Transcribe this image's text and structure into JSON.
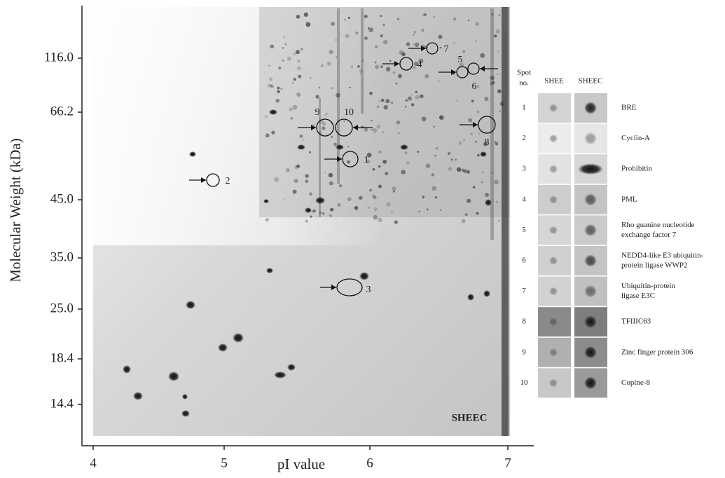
{
  "figure": {
    "y_axis_label": "Molecular Weight (kDa)",
    "x_axis_label": "pI value",
    "y_ticks": [
      "116.0",
      "66.2",
      "45.0",
      "35.0",
      "25.0",
      "18.4",
      "14.4"
    ],
    "x_ticks": [
      "4",
      "5",
      "6",
      "7"
    ],
    "gel_label": "SHEEC",
    "spots": [
      "1",
      "2",
      "3",
      "4",
      "5",
      "6",
      "7",
      "8",
      "9",
      "10"
    ]
  },
  "table": {
    "headers": {
      "spot": [
        "Spot",
        "no."
      ],
      "control": "SHEE",
      "sample": "SHEEC"
    },
    "rows": [
      {
        "spot": "1",
        "protein": [
          "BRE"
        ]
      },
      {
        "spot": "2",
        "protein": [
          "Cyclin-A"
        ]
      },
      {
        "spot": "3",
        "protein": [
          "Prohibitin"
        ]
      },
      {
        "spot": "4",
        "protein": [
          "PML"
        ]
      },
      {
        "spot": "5",
        "protein": [
          "Rho guanine nucleotide",
          "exchange factor 7"
        ]
      },
      {
        "spot": "6",
        "protein": [
          "NEDD4-like E3 ubiquitin-",
          "protein ligase WWP2"
        ]
      },
      {
        "spot": "7",
        "protein": [
          "Ubiquitin-protein",
          "ligase E3C"
        ]
      },
      {
        "spot": "8",
        "protein": [
          "TFIIIC63"
        ]
      },
      {
        "spot": "9",
        "protein": [
          "Zinc finger protein 306"
        ]
      },
      {
        "spot": "10",
        "protein": [
          "Copine-8"
        ]
      }
    ]
  }
}
